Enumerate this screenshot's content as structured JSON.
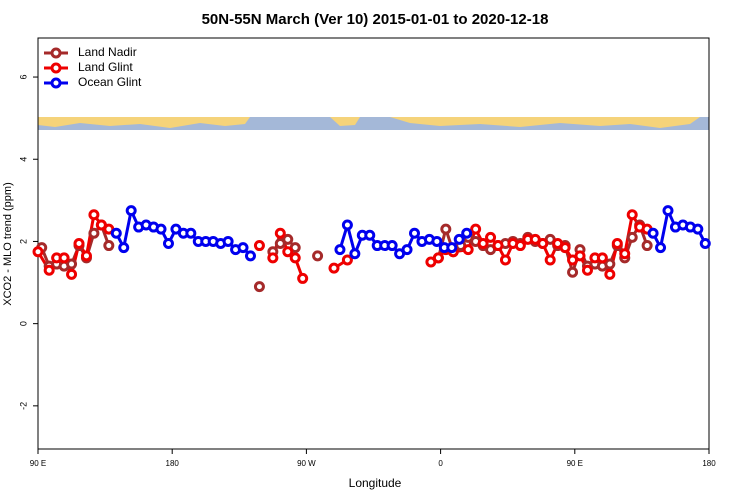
{
  "chart_data": {
    "type": "line",
    "title": "50N-55N March (Ver 10)   2015-01-01 to 2020-12-18",
    "x_label": "Longitude",
    "y_label": "XCO2 - MLO trend (ppm)",
    "xlim": [
      90,
      540
    ],
    "xticks": [
      {
        "value": 90,
        "label": "90 E"
      },
      {
        "value": 180,
        "label": "180"
      },
      {
        "value": 270,
        "label": "90 W"
      },
      {
        "value": 360,
        "label": "0"
      },
      {
        "value": 450,
        "label": "90 E"
      },
      {
        "value": 540,
        "label": "180"
      }
    ],
    "ylim": [
      -3.05,
      6.95
    ],
    "yticks": [
      -2,
      0,
      2,
      4,
      6
    ],
    "legend": "top-left",
    "series": [
      {
        "name": "Land Nadir",
        "color": "#a52a2a",
        "x": [
          92.5,
          97.5,
          102.5,
          107.5,
          112.5,
          117.5,
          122.5,
          127.5,
          132.5,
          137.5,
          null,
          238.5,
          null,
          247.5,
          252.5,
          257.5,
          262.5,
          null,
          277.5,
          null,
          358.5,
          363.5,
          368.5,
          373.5,
          378.5,
          383.5,
          388.5,
          393.5,
          398.5,
          403.5,
          408.5,
          413.5,
          418.5,
          423.5,
          428.5,
          433.5,
          438.5,
          443.5,
          448.5,
          453.5,
          458.5,
          463.5,
          468.5,
          473.5,
          478.5,
          483.5,
          488.5,
          493.5,
          498.5
        ],
        "values": [
          1.85,
          1.4,
          1.45,
          1.4,
          1.45,
          1.9,
          1.6,
          2.2,
          2.4,
          1.9,
          null,
          0.9,
          null,
          1.75,
          1.95,
          2.05,
          1.85,
          null,
          1.65,
          null,
          1.6,
          2.3,
          1.75,
          1.9,
          2.1,
          2.0,
          1.9,
          1.8,
          1.9,
          1.95,
          2.0,
          1.95,
          2.1,
          2.0,
          1.95,
          2.05,
          1.9,
          1.9,
          1.25,
          1.8,
          1.4,
          1.45,
          1.4,
          1.45,
          1.9,
          1.6,
          2.1,
          2.4,
          1.9
        ]
      },
      {
        "name": "Land Glint",
        "color": "#ee0000",
        "x": [
          90,
          97.5,
          102.5,
          107.5,
          112.5,
          117.5,
          122.5,
          127.5,
          132.5,
          137.5,
          null,
          238.5,
          null,
          247.5,
          252.5,
          257.5,
          262.5,
          267.5,
          null,
          288.5,
          297.5,
          null,
          353.5,
          358.5,
          363.5,
          368.5,
          378.5,
          383.5,
          388.5,
          393.5,
          398.5,
          403.5,
          408.5,
          413.5,
          418.5,
          423.5,
          428.5,
          433.5,
          438.5,
          443.5,
          448.5,
          453.5,
          458.5,
          463.5,
          468.5,
          473.5,
          478.5,
          483.5,
          488.5,
          493.5,
          498.5
        ],
        "values": [
          1.75,
          1.3,
          1.6,
          1.6,
          1.2,
          1.95,
          1.65,
          2.65,
          2.4,
          2.3,
          null,
          1.9,
          null,
          1.6,
          2.2,
          1.75,
          1.6,
          1.1,
          null,
          1.35,
          1.55,
          null,
          1.5,
          1.6,
          1.8,
          1.75,
          1.8,
          2.3,
          1.95,
          2.1,
          1.9,
          1.55,
          1.95,
          1.9,
          2.05,
          2.05,
          1.95,
          1.55,
          1.95,
          1.85,
          1.55,
          1.65,
          1.3,
          1.6,
          1.6,
          1.2,
          1.95,
          1.7,
          2.65,
          2.35,
          2.3
        ]
      },
      {
        "name": "Ocean Glint",
        "color": "#0000ee",
        "x": [
          142.5,
          147.5,
          152.5,
          157.5,
          162.5,
          167.5,
          172.5,
          177.5,
          182.5,
          187.5,
          192.5,
          197.5,
          202.5,
          207.5,
          212.5,
          217.5,
          222.5,
          227.5,
          232.5,
          null,
          292.5,
          297.5,
          302.5,
          307.5,
          312.5,
          317.5,
          322.5,
          327.5,
          332.5,
          337.5,
          342.5,
          347.5,
          352.5,
          357.5,
          362.5,
          367.5,
          372.5,
          377.5,
          null,
          502.5,
          507.5,
          512.5,
          517.5,
          522.5,
          527.5,
          532.5,
          537.5
        ],
        "values": [
          2.2,
          1.85,
          2.75,
          2.35,
          2.4,
          2.35,
          2.3,
          1.95,
          2.3,
          2.2,
          2.2,
          2.0,
          2.0,
          2.0,
          1.95,
          2.0,
          1.8,
          1.85,
          1.65,
          null,
          1.8,
          2.4,
          1.7,
          2.15,
          2.15,
          1.9,
          1.9,
          1.9,
          1.7,
          1.8,
          2.2,
          2.0,
          2.05,
          2.0,
          1.85,
          1.85,
          2.05,
          2.2,
          null,
          2.2,
          1.85,
          2.75,
          2.35,
          2.4,
          2.35,
          2.3,
          1.95
        ]
      }
    ]
  }
}
